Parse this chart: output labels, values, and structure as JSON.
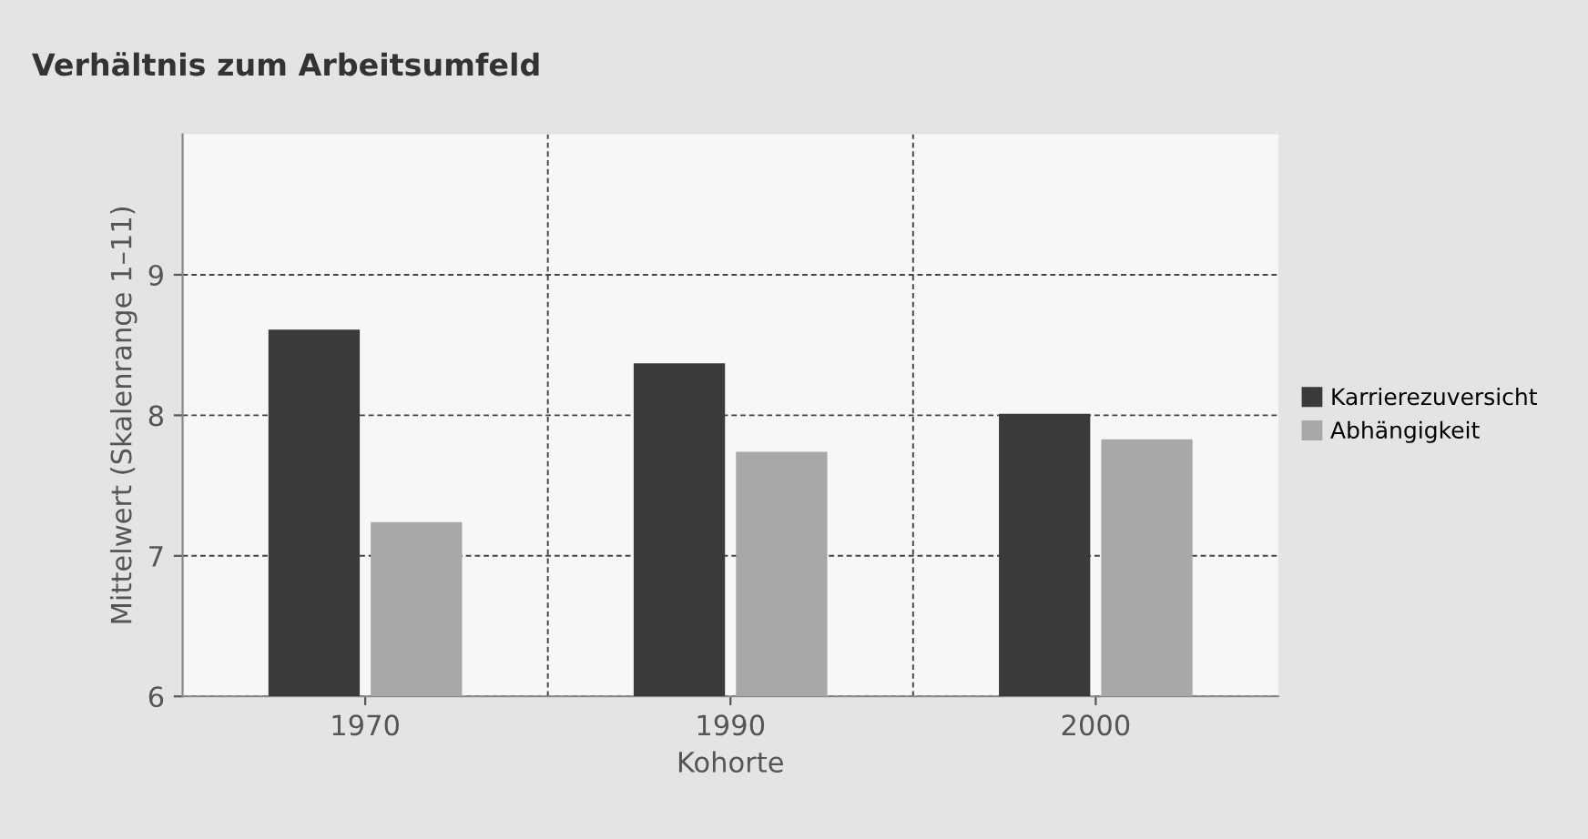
{
  "chart_data": {
    "type": "bar",
    "title": "Verhältnis zum Arbeitsumfeld",
    "xlabel": "Kohorte",
    "ylabel": "Mittelwert (Skalenrange 1–11)",
    "categories": [
      "1970",
      "1990",
      "2000"
    ],
    "series": [
      {
        "name": "Karrierezuversicht",
        "color": "#3a3a3a",
        "values": [
          8.61,
          8.37,
          8.01
        ]
      },
      {
        "name": "Abhängigkeit",
        "color": "#a8a8a8",
        "values": [
          7.24,
          7.74,
          7.83
        ]
      }
    ],
    "ylim": [
      6,
      10
    ],
    "yticks": [
      6,
      7,
      8,
      9
    ],
    "grid": true,
    "legend": "right"
  }
}
